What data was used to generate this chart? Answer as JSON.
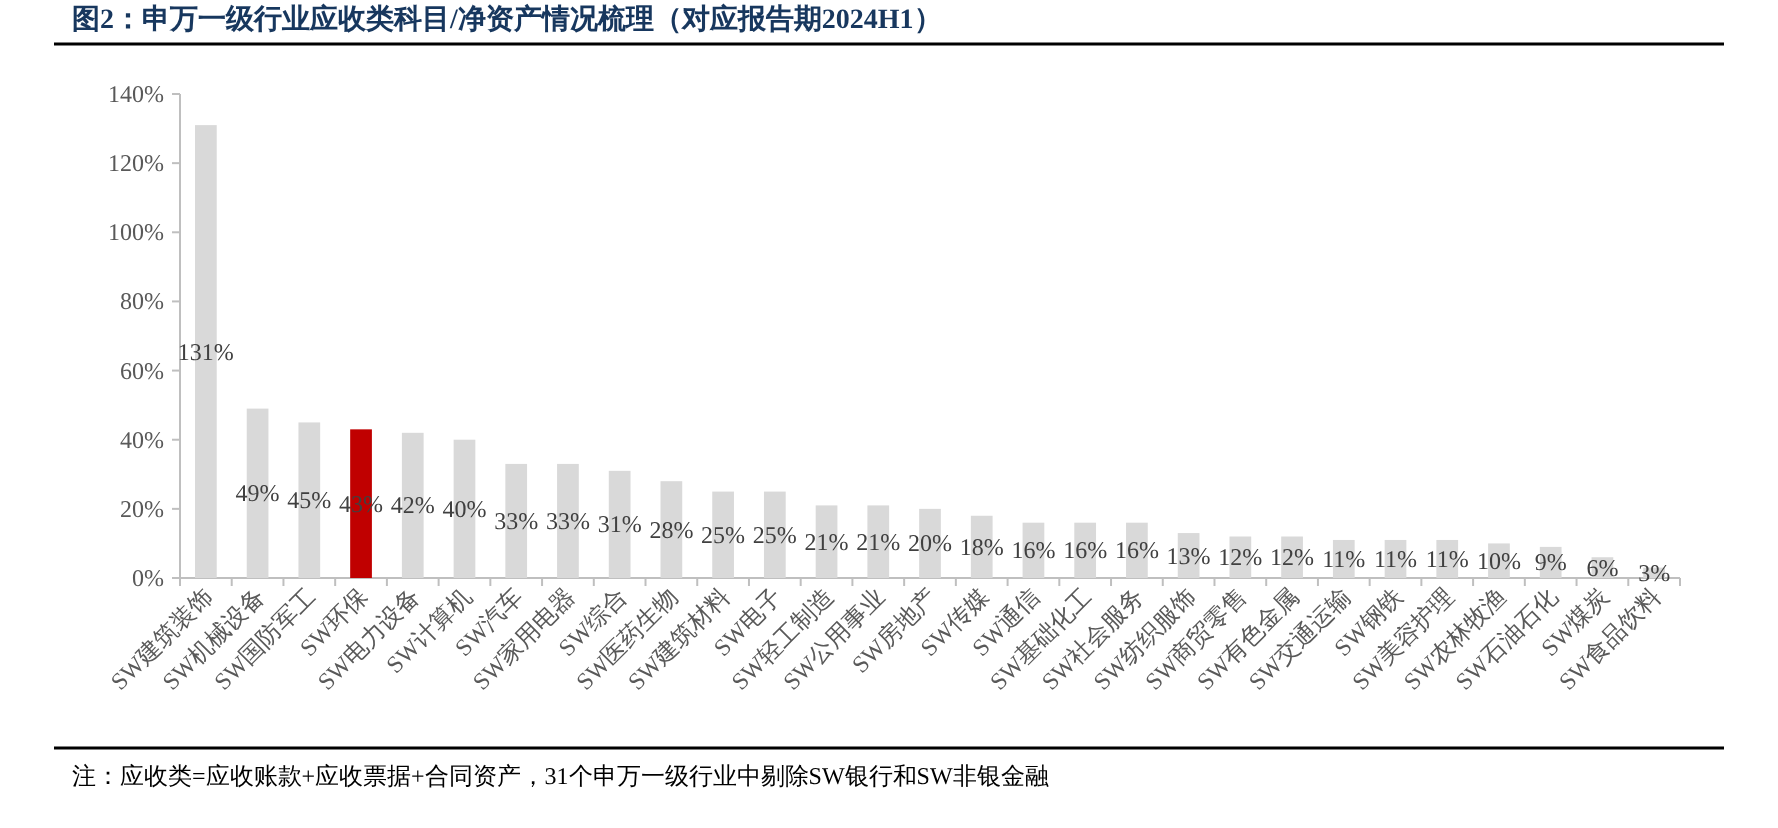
{
  "chart_data": {
    "type": "bar",
    "title": "图2：申万一级行业应收类科目/净资产情况梳理（对应报告期2024H1）",
    "categories": [
      "SW建筑装饰",
      "SW机械设备",
      "SW国防军工",
      "SW环保",
      "SW电力设备",
      "SW计算机",
      "SW汽车",
      "SW家用电器",
      "SW综合",
      "SW医药生物",
      "SW建筑材料",
      "SW电子",
      "SW轻工制造",
      "SW公用事业",
      "SW房地产",
      "SW传媒",
      "SW通信",
      "SW基础化工",
      "SW社会服务",
      "SW纺织服饰",
      "SW商贸零售",
      "SW有色金属",
      "SW交通运输",
      "SW钢铁",
      "SW美容护理",
      "SW农林牧渔",
      "SW石油石化",
      "SW煤炭",
      "SW食品饮料"
    ],
    "values": [
      131,
      49,
      45,
      43,
      42,
      40,
      33,
      33,
      31,
      28,
      25,
      25,
      21,
      21,
      20,
      18,
      16,
      16,
      16,
      13,
      12,
      12,
      11,
      11,
      11,
      10,
      9,
      6,
      3
    ],
    "colors": [
      "#d9d9d9",
      "#d9d9d9",
      "#d9d9d9",
      "#c00000",
      "#d9d9d9",
      "#d9d9d9",
      "#d9d9d9",
      "#d9d9d9",
      "#d9d9d9",
      "#d9d9d9",
      "#d9d9d9",
      "#d9d9d9",
      "#d9d9d9",
      "#d9d9d9",
      "#d9d9d9",
      "#d9d9d9",
      "#d9d9d9",
      "#d9d9d9",
      "#d9d9d9",
      "#d9d9d9",
      "#d9d9d9",
      "#d9d9d9",
      "#d9d9d9",
      "#d9d9d9",
      "#d9d9d9",
      "#d9d9d9",
      "#d9d9d9",
      "#d9d9d9",
      "#d9d9d9"
    ],
    "value_labels": [
      "131%",
      "49%",
      "45%",
      "43%",
      "42%",
      "40%",
      "33%",
      "33%",
      "31%",
      "28%",
      "25%",
      "25%",
      "21%",
      "21%",
      "20%",
      "18%",
      "16%",
      "16%",
      "16%",
      "13%",
      "12%",
      "12%",
      "11%",
      "11%",
      "11%",
      "10%",
      "9%",
      "6%",
      "3%"
    ],
    "ylim": [
      0,
      140
    ],
    "yticks": [
      {
        "value": 0,
        "label": "0%"
      },
      {
        "value": 20,
        "label": "20%"
      },
      {
        "value": 40,
        "label": "40%"
      },
      {
        "value": 60,
        "label": "60%"
      },
      {
        "value": 80,
        "label": "80%"
      },
      {
        "value": 100,
        "label": "100%"
      },
      {
        "value": 120,
        "label": "120%"
      },
      {
        "value": 140,
        "label": "140%"
      }
    ],
    "grid": false,
    "annotations": [
      "注：应收类=应收账款+应收票据+合同资产，31个申万一级行业中剔除SW银行和SW非银金融"
    ]
  }
}
